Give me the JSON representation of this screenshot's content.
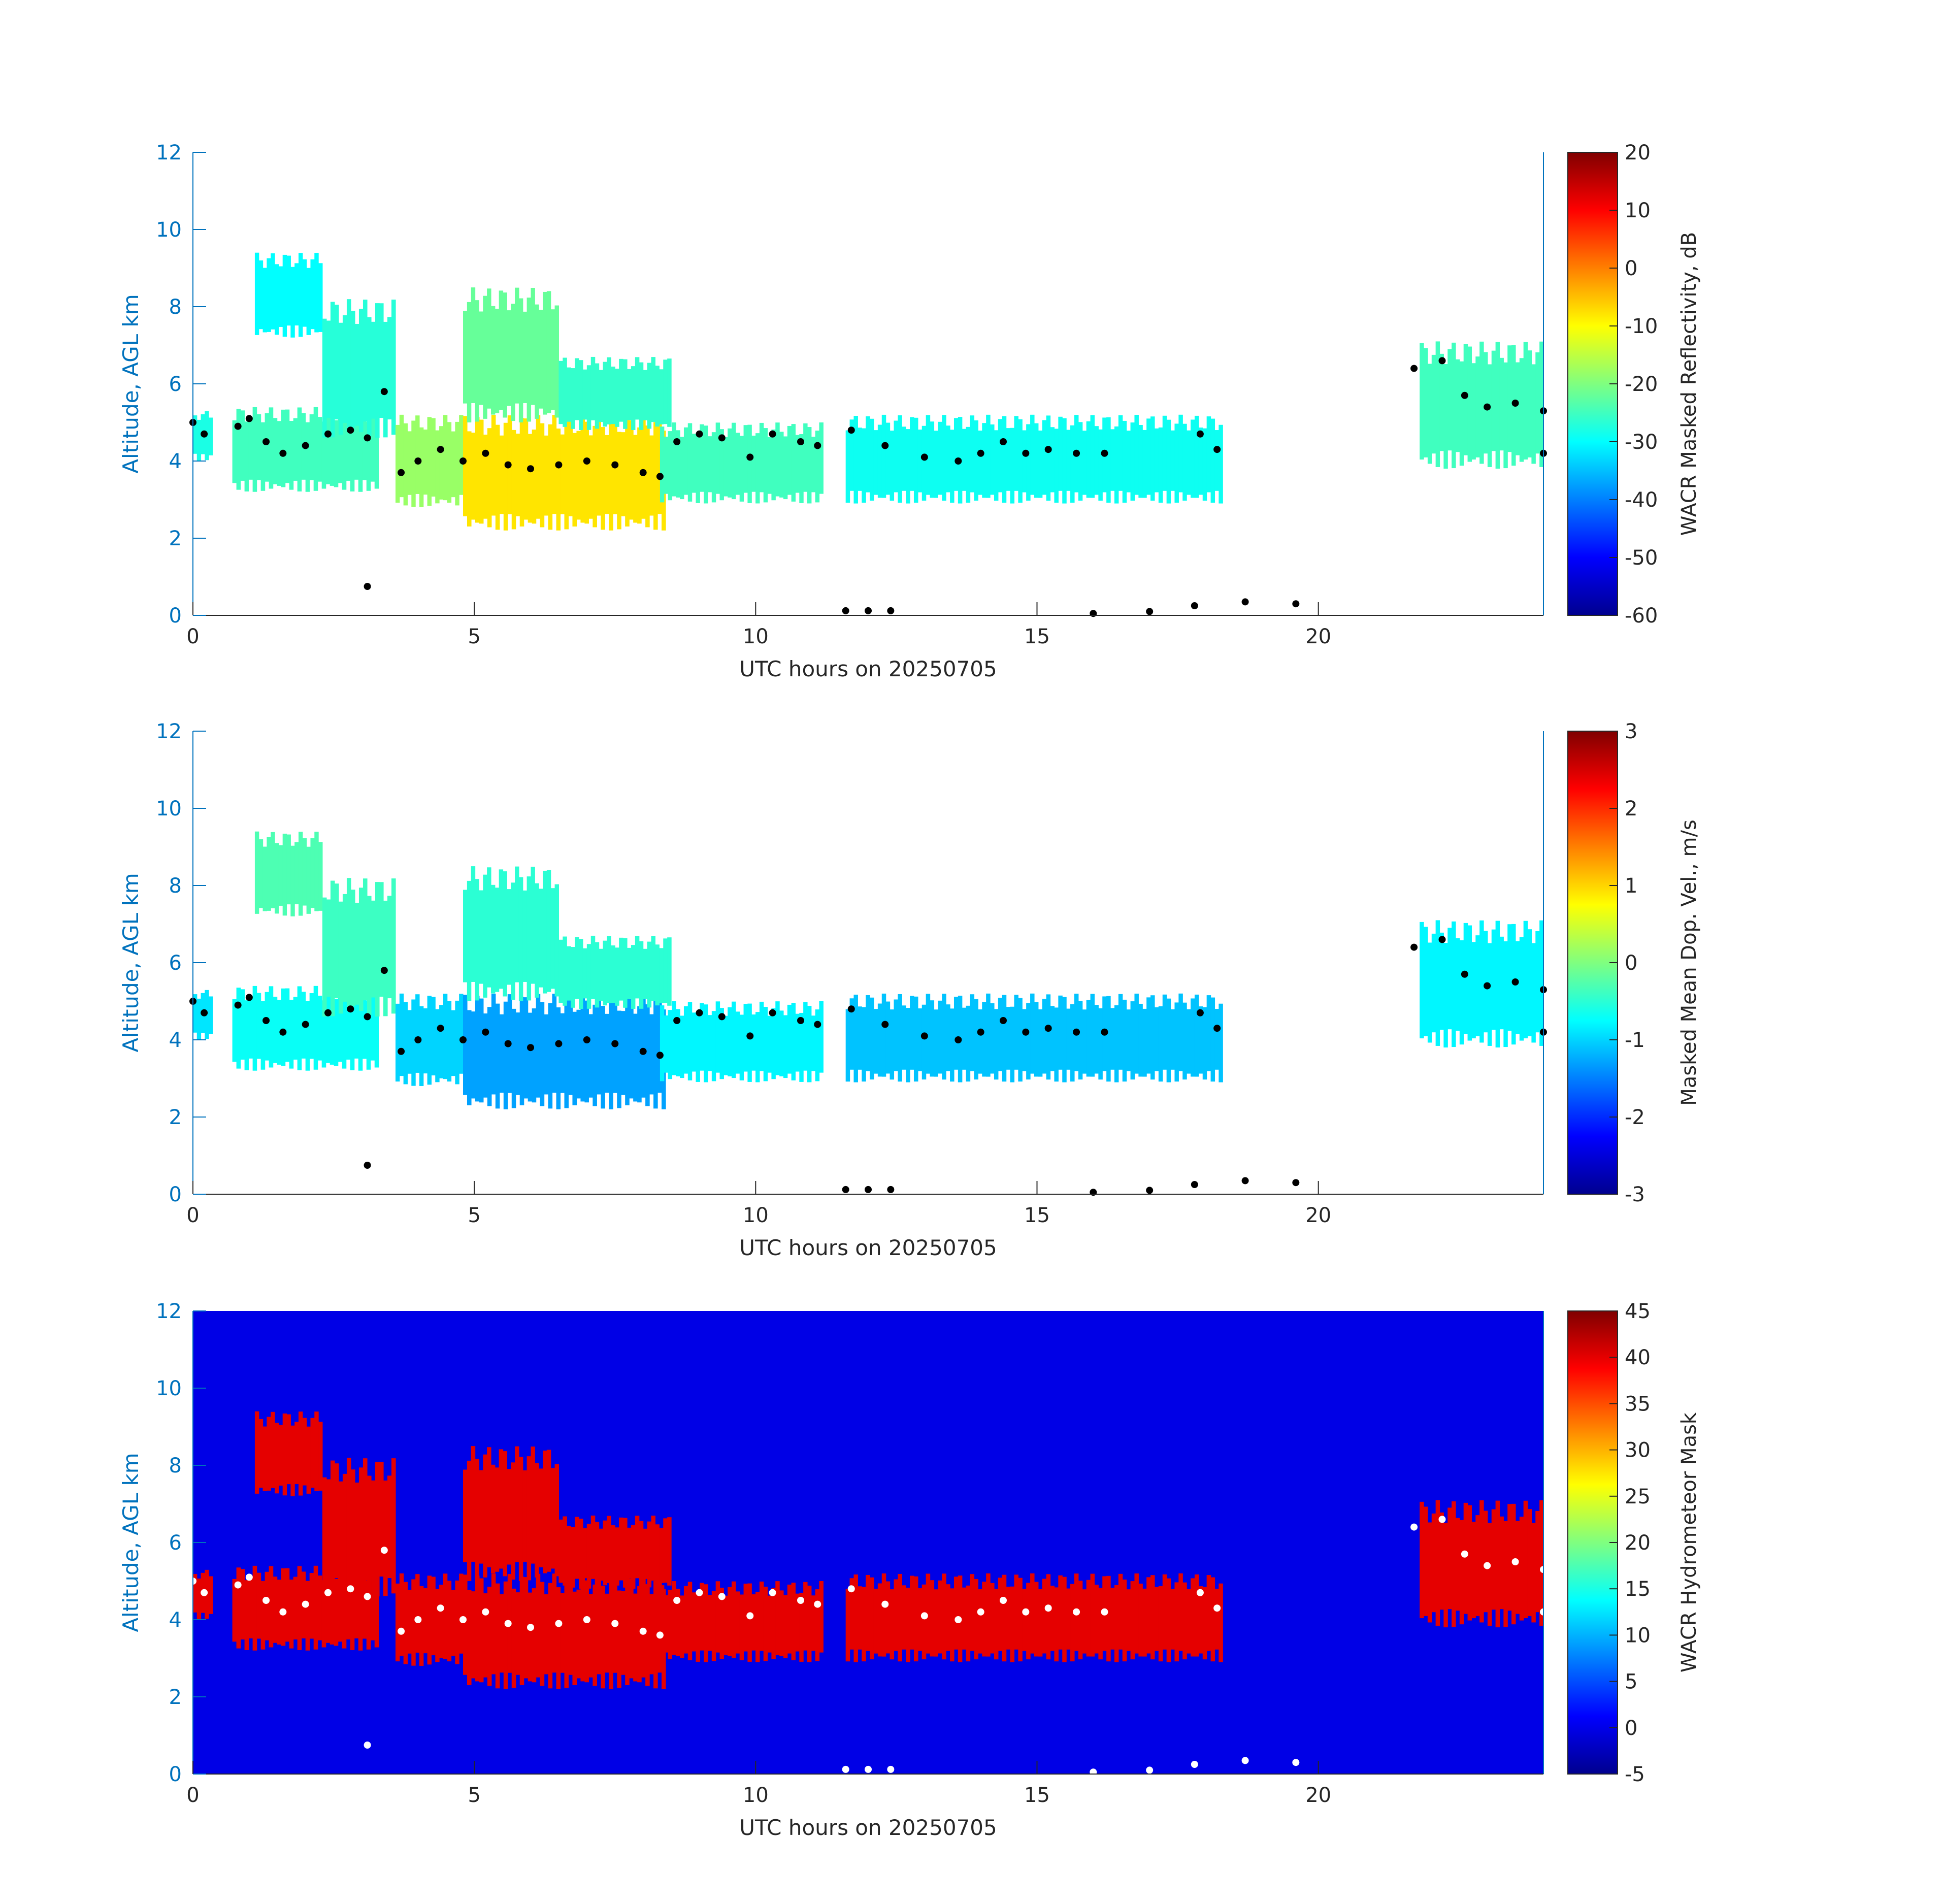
{
  "chart_data": [
    {
      "type": "heatmap",
      "panel": "reflectivity",
      "xlabel": "UTC hours on 20250705",
      "ylabel": "Altitude, AGL km",
      "xlim": [
        0,
        24
      ],
      "ylim": [
        0,
        12
      ],
      "x_ticks": [
        "0",
        "5",
        "10",
        "15",
        "20"
      ],
      "y_ticks": [
        "0",
        "2",
        "4",
        "6",
        "8",
        "10",
        "12"
      ],
      "background": "#ffffff",
      "colorbar": {
        "label": "WACR Masked Reflectivity, dB",
        "range": [
          -60,
          20
        ],
        "ticks": [
          "20",
          "10",
          "0",
          "-10",
          "-20",
          "-30",
          "-40",
          "-50",
          "-60"
        ]
      },
      "overlay": "cloud base points (black)",
      "overlay_color": "#000000",
      "cloud_regions": [
        {
          "x0": 0.0,
          "x1": 0.35,
          "bottom": 4.0,
          "top": 5.3,
          "value": -28
        },
        {
          "x0": 0.7,
          "x1": 3.3,
          "bottom": 3.2,
          "top": 5.4,
          "value": -25
        },
        {
          "x0": 1.1,
          "x1": 2.3,
          "bottom": 7.2,
          "top": 9.4,
          "value": -30
        },
        {
          "x0": 2.3,
          "x1": 3.6,
          "bottom": 4.6,
          "top": 8.2,
          "value": -27
        },
        {
          "x0": 3.6,
          "x1": 4.8,
          "bottom": 2.8,
          "top": 5.2,
          "value": -18
        },
        {
          "x0": 4.8,
          "x1": 8.4,
          "bottom": 2.2,
          "top": 5.2,
          "value": -8
        },
        {
          "x0": 4.8,
          "x1": 6.5,
          "bottom": 5.0,
          "top": 8.5,
          "value": -22
        },
        {
          "x0": 6.5,
          "x1": 8.5,
          "bottom": 4.8,
          "top": 6.7,
          "value": -26
        },
        {
          "x0": 8.3,
          "x1": 11.2,
          "bottom": 2.9,
          "top": 5.0,
          "value": -25
        },
        {
          "x0": 11.6,
          "x1": 18.3,
          "bottom": 2.9,
          "top": 5.2,
          "value": -29
        },
        {
          "x0": 21.8,
          "x1": 24.0,
          "bottom": 3.8,
          "top": 7.1,
          "value": -25
        }
      ],
      "cloud_base_points": [
        [
          0.0,
          5.0
        ],
        [
          0.2,
          4.7
        ],
        [
          0.8,
          4.9
        ],
        [
          1.0,
          5.1
        ],
        [
          1.3,
          4.5
        ],
        [
          1.6,
          4.2
        ],
        [
          2.0,
          4.4
        ],
        [
          2.4,
          4.7
        ],
        [
          2.8,
          4.8
        ],
        [
          3.1,
          4.6
        ],
        [
          3.4,
          5.8
        ],
        [
          3.7,
          3.7
        ],
        [
          4.0,
          4.0
        ],
        [
          4.4,
          4.3
        ],
        [
          4.8,
          4.0
        ],
        [
          5.2,
          4.2
        ],
        [
          5.6,
          3.9
        ],
        [
          6.0,
          3.8
        ],
        [
          6.5,
          3.9
        ],
        [
          7.0,
          4.0
        ],
        [
          7.5,
          3.9
        ],
        [
          8.0,
          3.7
        ],
        [
          8.3,
          3.6
        ],
        [
          8.6,
          4.5
        ],
        [
          9.0,
          4.7
        ],
        [
          9.4,
          4.6
        ],
        [
          9.9,
          4.1
        ],
        [
          10.3,
          4.7
        ],
        [
          10.8,
          4.5
        ],
        [
          11.1,
          4.4
        ],
        [
          11.7,
          4.8
        ],
        [
          12.3,
          4.4
        ],
        [
          13.0,
          4.1
        ],
        [
          13.6,
          4.0
        ],
        [
          14.0,
          4.2
        ],
        [
          14.4,
          4.5
        ],
        [
          14.8,
          4.2
        ],
        [
          15.2,
          4.3
        ],
        [
          15.7,
          4.2
        ],
        [
          16.2,
          4.2
        ],
        [
          17.9,
          4.7
        ],
        [
          18.2,
          4.3
        ],
        [
          3.1,
          0.75
        ],
        [
          11.6,
          0.12
        ],
        [
          12.0,
          0.12
        ],
        [
          12.4,
          0.12
        ],
        [
          16.0,
          0.05
        ],
        [
          17.0,
          0.1
        ],
        [
          17.8,
          0.25
        ],
        [
          18.7,
          0.35
        ],
        [
          19.6,
          0.3
        ],
        [
          21.7,
          6.4
        ],
        [
          22.2,
          6.6
        ],
        [
          22.6,
          5.7
        ],
        [
          23.0,
          5.4
        ],
        [
          23.5,
          5.5
        ],
        [
          24.0,
          5.3
        ],
        [
          24.0,
          4.2
        ]
      ]
    },
    {
      "type": "heatmap",
      "panel": "doppler_velocity",
      "xlabel": "UTC hours on 20250705",
      "ylabel": "Altitude, AGL km",
      "xlim": [
        0,
        24
      ],
      "ylim": [
        0,
        12
      ],
      "x_ticks": [
        "0",
        "5",
        "10",
        "15",
        "20"
      ],
      "y_ticks": [
        "0",
        "2",
        "4",
        "6",
        "8",
        "10",
        "12"
      ],
      "background": "#ffffff",
      "colorbar": {
        "label": "Masked Mean Dop. Vel., m/s",
        "range": [
          -3,
          3
        ],
        "ticks": [
          "3",
          "2",
          "1",
          "0",
          "-1",
          "-2",
          "-3"
        ]
      },
      "overlay": "cloud base points (black)",
      "overlay_color": "#000000",
      "cloud_regions": [
        {
          "x0": 0.0,
          "x1": 0.35,
          "bottom": 4.0,
          "top": 5.3,
          "value": -0.9
        },
        {
          "x0": 0.7,
          "x1": 3.3,
          "bottom": 3.2,
          "top": 5.4,
          "value": -0.7
        },
        {
          "x0": 1.1,
          "x1": 2.3,
          "bottom": 7.2,
          "top": 9.4,
          "value": -0.3
        },
        {
          "x0": 2.3,
          "x1": 3.6,
          "bottom": 4.6,
          "top": 8.2,
          "value": -0.4
        },
        {
          "x0": 3.6,
          "x1": 4.8,
          "bottom": 2.8,
          "top": 5.2,
          "value": -1.0
        },
        {
          "x0": 4.8,
          "x1": 8.4,
          "bottom": 2.2,
          "top": 5.2,
          "value": -1.3
        },
        {
          "x0": 4.8,
          "x1": 6.5,
          "bottom": 5.0,
          "top": 8.5,
          "value": -0.5
        },
        {
          "x0": 6.5,
          "x1": 8.5,
          "bottom": 4.8,
          "top": 6.7,
          "value": -0.5
        },
        {
          "x0": 8.3,
          "x1": 11.2,
          "bottom": 2.9,
          "top": 5.0,
          "value": -0.8
        },
        {
          "x0": 11.6,
          "x1": 18.3,
          "bottom": 2.9,
          "top": 5.2,
          "value": -1.1
        },
        {
          "x0": 21.8,
          "x1": 24.0,
          "bottom": 3.8,
          "top": 7.1,
          "value": -0.8
        }
      ],
      "cloud_base_points": [
        [
          0.0,
          5.0
        ],
        [
          0.2,
          4.7
        ],
        [
          0.8,
          4.9
        ],
        [
          1.0,
          5.1
        ],
        [
          1.3,
          4.5
        ],
        [
          1.6,
          4.2
        ],
        [
          2.0,
          4.4
        ],
        [
          2.4,
          4.7
        ],
        [
          2.8,
          4.8
        ],
        [
          3.1,
          4.6
        ],
        [
          3.4,
          5.8
        ],
        [
          3.7,
          3.7
        ],
        [
          4.0,
          4.0
        ],
        [
          4.4,
          4.3
        ],
        [
          4.8,
          4.0
        ],
        [
          5.2,
          4.2
        ],
        [
          5.6,
          3.9
        ],
        [
          6.0,
          3.8
        ],
        [
          6.5,
          3.9
        ],
        [
          7.0,
          4.0
        ],
        [
          7.5,
          3.9
        ],
        [
          8.0,
          3.7
        ],
        [
          8.3,
          3.6
        ],
        [
          8.6,
          4.5
        ],
        [
          9.0,
          4.7
        ],
        [
          9.4,
          4.6
        ],
        [
          9.9,
          4.1
        ],
        [
          10.3,
          4.7
        ],
        [
          10.8,
          4.5
        ],
        [
          11.1,
          4.4
        ],
        [
          11.7,
          4.8
        ],
        [
          12.3,
          4.4
        ],
        [
          13.0,
          4.1
        ],
        [
          13.6,
          4.0
        ],
        [
          14.0,
          4.2
        ],
        [
          14.4,
          4.5
        ],
        [
          14.8,
          4.2
        ],
        [
          15.2,
          4.3
        ],
        [
          15.7,
          4.2
        ],
        [
          16.2,
          4.2
        ],
        [
          17.9,
          4.7
        ],
        [
          18.2,
          4.3
        ],
        [
          3.1,
          0.75
        ],
        [
          11.6,
          0.12
        ],
        [
          12.0,
          0.12
        ],
        [
          12.4,
          0.12
        ],
        [
          16.0,
          0.05
        ],
        [
          17.0,
          0.1
        ],
        [
          17.8,
          0.25
        ],
        [
          18.7,
          0.35
        ],
        [
          19.6,
          0.3
        ],
        [
          21.7,
          6.4
        ],
        [
          22.2,
          6.6
        ],
        [
          22.6,
          5.7
        ],
        [
          23.0,
          5.4
        ],
        [
          23.5,
          5.5
        ],
        [
          24.0,
          5.3
        ],
        [
          24.0,
          4.2
        ]
      ]
    },
    {
      "type": "heatmap",
      "panel": "hydrometeor_mask",
      "xlabel": "UTC hours on 20250705",
      "ylabel": "Altitude, AGL km",
      "xlim": [
        0,
        24
      ],
      "ylim": [
        0,
        12
      ],
      "x_ticks": [
        "0",
        "5",
        "10",
        "15",
        "20"
      ],
      "y_ticks": [
        "0",
        "2",
        "4",
        "6",
        "8",
        "10",
        "12"
      ],
      "background": "#0000e6",
      "colorbar": {
        "label": "WACR Hydrometeor Mask",
        "range": [
          -5,
          45
        ],
        "ticks": [
          "45",
          "40",
          "35",
          "30",
          "25",
          "20",
          "15",
          "10",
          "5",
          "0",
          "-5"
        ]
      },
      "overlay": "cloud base points (white)",
      "overlay_color": "#ffffff",
      "cloud_regions": [
        {
          "x0": 0.0,
          "x1": 0.35,
          "bottom": 4.0,
          "top": 5.3,
          "value": 40
        },
        {
          "x0": 0.7,
          "x1": 3.3,
          "bottom": 3.2,
          "top": 5.4,
          "value": 40
        },
        {
          "x0": 1.1,
          "x1": 2.3,
          "bottom": 7.2,
          "top": 9.4,
          "value": 40
        },
        {
          "x0": 2.3,
          "x1": 3.6,
          "bottom": 4.6,
          "top": 8.2,
          "value": 40
        },
        {
          "x0": 3.6,
          "x1": 4.8,
          "bottom": 2.8,
          "top": 5.2,
          "value": 40
        },
        {
          "x0": 4.8,
          "x1": 8.4,
          "bottom": 2.2,
          "top": 5.2,
          "value": 40
        },
        {
          "x0": 4.8,
          "x1": 6.5,
          "bottom": 5.0,
          "top": 8.5,
          "value": 40
        },
        {
          "x0": 6.5,
          "x1": 8.5,
          "bottom": 4.8,
          "top": 6.7,
          "value": 40
        },
        {
          "x0": 8.3,
          "x1": 11.2,
          "bottom": 2.9,
          "top": 5.0,
          "value": 40
        },
        {
          "x0": 11.6,
          "x1": 18.3,
          "bottom": 2.9,
          "top": 5.2,
          "value": 40
        },
        {
          "x0": 21.8,
          "x1": 24.0,
          "bottom": 3.8,
          "top": 7.1,
          "value": 40
        }
      ],
      "cloud_base_points": [
        [
          0.0,
          5.0
        ],
        [
          0.2,
          4.7
        ],
        [
          0.8,
          4.9
        ],
        [
          1.0,
          5.1
        ],
        [
          1.3,
          4.5
        ],
        [
          1.6,
          4.2
        ],
        [
          2.0,
          4.4
        ],
        [
          2.4,
          4.7
        ],
        [
          2.8,
          4.8
        ],
        [
          3.1,
          4.6
        ],
        [
          3.4,
          5.8
        ],
        [
          3.7,
          3.7
        ],
        [
          4.0,
          4.0
        ],
        [
          4.4,
          4.3
        ],
        [
          4.8,
          4.0
        ],
        [
          5.2,
          4.2
        ],
        [
          5.6,
          3.9
        ],
        [
          6.0,
          3.8
        ],
        [
          6.5,
          3.9
        ],
        [
          7.0,
          4.0
        ],
        [
          7.5,
          3.9
        ],
        [
          8.0,
          3.7
        ],
        [
          8.3,
          3.6
        ],
        [
          8.6,
          4.5
        ],
        [
          9.0,
          4.7
        ],
        [
          9.4,
          4.6
        ],
        [
          9.9,
          4.1
        ],
        [
          10.3,
          4.7
        ],
        [
          10.8,
          4.5
        ],
        [
          11.1,
          4.4
        ],
        [
          11.7,
          4.8
        ],
        [
          12.3,
          4.4
        ],
        [
          13.0,
          4.1
        ],
        [
          13.6,
          4.0
        ],
        [
          14.0,
          4.2
        ],
        [
          14.4,
          4.5
        ],
        [
          14.8,
          4.2
        ],
        [
          15.2,
          4.3
        ],
        [
          15.7,
          4.2
        ],
        [
          16.2,
          4.2
        ],
        [
          17.9,
          4.7
        ],
        [
          18.2,
          4.3
        ],
        [
          3.1,
          0.75
        ],
        [
          11.6,
          0.12
        ],
        [
          12.0,
          0.12
        ],
        [
          12.4,
          0.12
        ],
        [
          16.0,
          0.05
        ],
        [
          17.0,
          0.1
        ],
        [
          17.8,
          0.25
        ],
        [
          18.7,
          0.35
        ],
        [
          19.6,
          0.3
        ],
        [
          21.7,
          6.4
        ],
        [
          22.2,
          6.6
        ],
        [
          22.6,
          5.7
        ],
        [
          23.0,
          5.4
        ],
        [
          23.5,
          5.5
        ],
        [
          24.0,
          5.3
        ],
        [
          24.0,
          4.2
        ]
      ]
    }
  ]
}
